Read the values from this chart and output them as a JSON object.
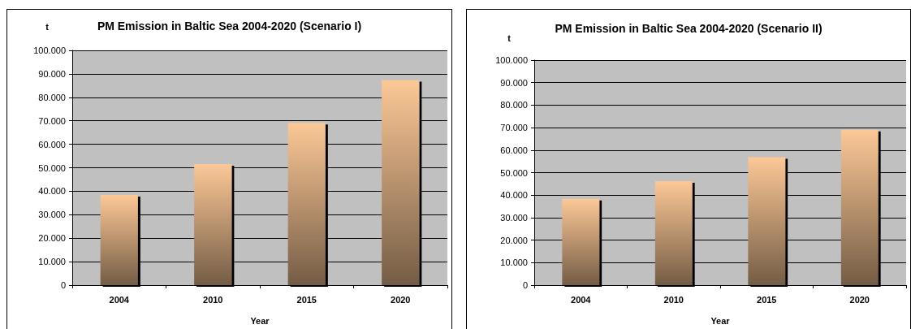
{
  "chart_data": [
    {
      "type": "bar",
      "title": "PM Emission in Baltic Sea 2004-2020 (Scenario I)",
      "xlabel": "Year",
      "ylabel": "t",
      "categories": [
        "2004",
        "2010",
        "2015",
        "2020"
      ],
      "values": [
        38400,
        51600,
        69100,
        87400
      ],
      "color": "#fcc896",
      "ylim": [
        0,
        100000
      ],
      "yticks": [
        0,
        {
          "value": 10000,
          "label": "10.000"
        },
        {
          "value": 20000,
          "label": "20.000"
        },
        {
          "value": 30000,
          "label": "30.000"
        },
        {
          "value": 40000,
          "label": "40.000"
        },
        {
          "value": 50000,
          "label": "50.000"
        },
        {
          "value": 60000,
          "label": "60.000"
        },
        {
          "value": 70000,
          "label": "70.000"
        },
        {
          "value": 80000,
          "label": "80.000"
        },
        {
          "value": 90000,
          "label": "90.000"
        },
        {
          "value": 100000,
          "label": "100.000"
        }
      ],
      "grid": "y"
    },
    {
      "type": "bar",
      "title": "PM Emission in Baltic Sea 2004-2020 (Scenario II)",
      "xlabel": "Year",
      "ylabel": "t",
      "categories": [
        "2004",
        "2010",
        "2015",
        "2020"
      ],
      "values": [
        38400,
        46200,
        56900,
        69000
      ],
      "color": "#fcc896",
      "ylim": [
        0,
        100000
      ],
      "yticks": [
        0,
        {
          "value": 10000,
          "label": "10.000"
        },
        {
          "value": 20000,
          "label": "20.000"
        },
        {
          "value": 30000,
          "label": "30.000"
        },
        {
          "value": 40000,
          "label": "40.000"
        },
        {
          "value": 50000,
          "label": "50.000"
        },
        {
          "value": 60000,
          "label": "60.000"
        },
        {
          "value": 70000,
          "label": "70.000"
        },
        {
          "value": 80000,
          "label": "80.000"
        },
        {
          "value": 90000,
          "label": "90.000"
        },
        {
          "value": 100000,
          "label": "100.000"
        }
      ],
      "grid": "y"
    }
  ]
}
